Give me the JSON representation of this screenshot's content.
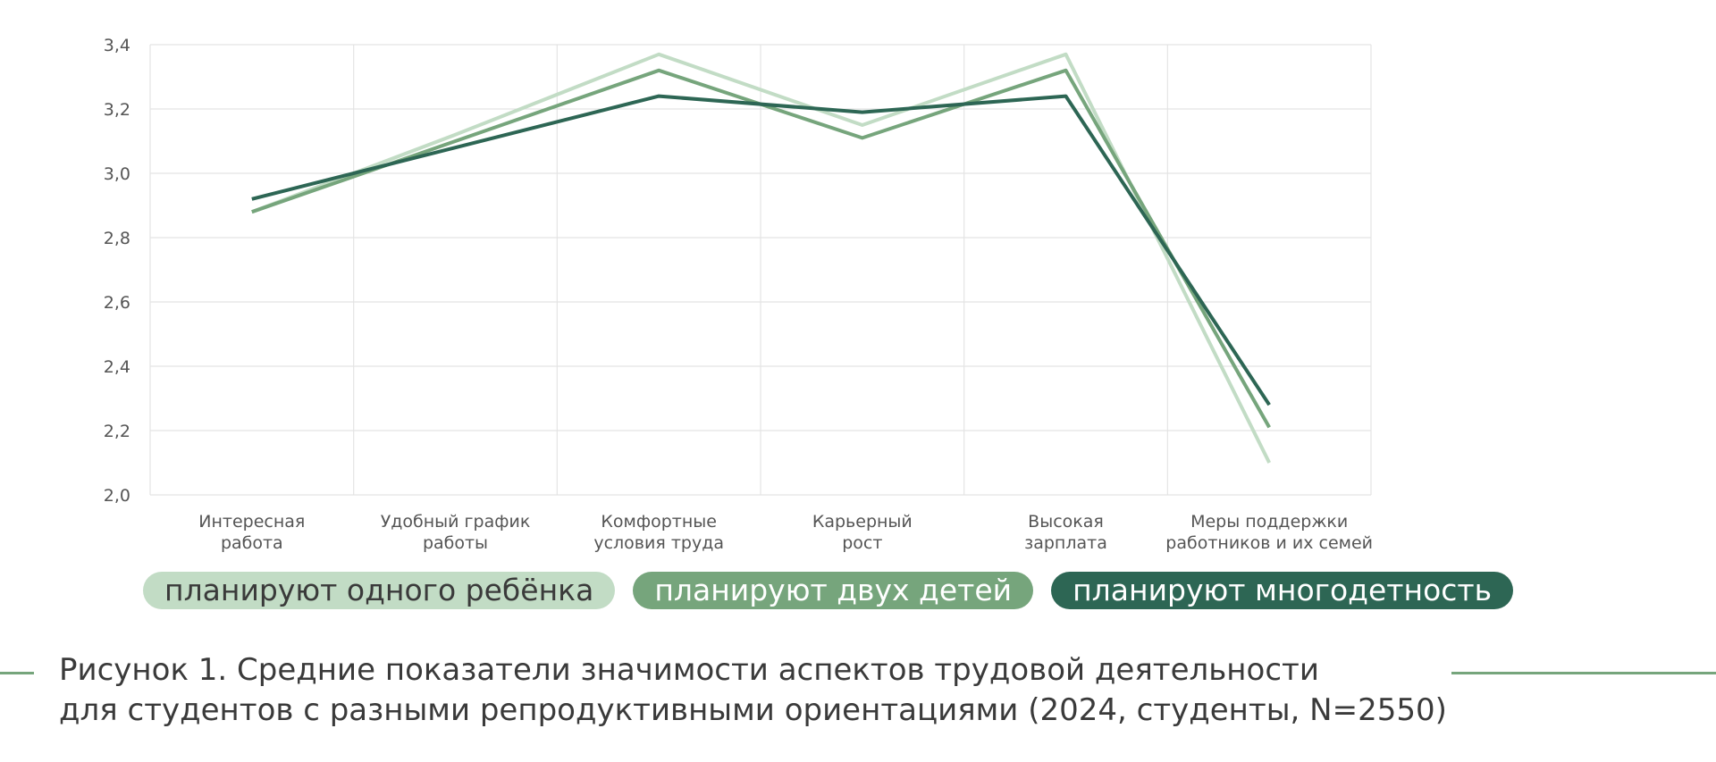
{
  "colors": {
    "series_1": "#c2dcc5",
    "series_2": "#76a57c",
    "series_3": "#2d6654",
    "grid": "#e4e4e4",
    "caption_rule": "#76a57c"
  },
  "chart_data": {
    "type": "line",
    "categories": [
      [
        "Интересная",
        "работа"
      ],
      [
        "Удобный график",
        "работы"
      ],
      [
        "Комфортные",
        "условия труда"
      ],
      [
        "Карьерный",
        "рост"
      ],
      [
        "Высокая",
        "зарплата"
      ],
      [
        "Меры поддержки",
        "работников и их семей"
      ]
    ],
    "series": [
      {
        "name": "планируют одного ребёнка",
        "values": [
          2.88,
          3.12,
          3.37,
          3.15,
          3.37,
          2.1
        ]
      },
      {
        "name": "планируют двух детей",
        "values": [
          2.88,
          3.1,
          3.32,
          3.11,
          3.32,
          2.21
        ]
      },
      {
        "name": "планируют многодетность",
        "values": [
          2.92,
          3.08,
          3.24,
          3.19,
          3.24,
          2.28
        ]
      }
    ],
    "ylim": [
      2.0,
      3.4
    ],
    "yticks": [
      "2,0",
      "2,2",
      "2,4",
      "2,6",
      "2,8",
      "3,0",
      "3,2",
      "3,4"
    ],
    "grid": true,
    "legend_position": "bottom",
    "title": "",
    "xlabel": "",
    "ylabel": ""
  },
  "legend": {
    "item_1": "планируют одного ребёнка",
    "item_2": "планируют двух детей",
    "item_3": "планируют многодетность"
  },
  "caption": {
    "line_1": "Рисунок 1. Средние показатели значимости аспектов трудовой деятельности",
    "line_2": "для студентов с разными репродуктивными ориентациями (2024, студенты, N=2550)"
  }
}
